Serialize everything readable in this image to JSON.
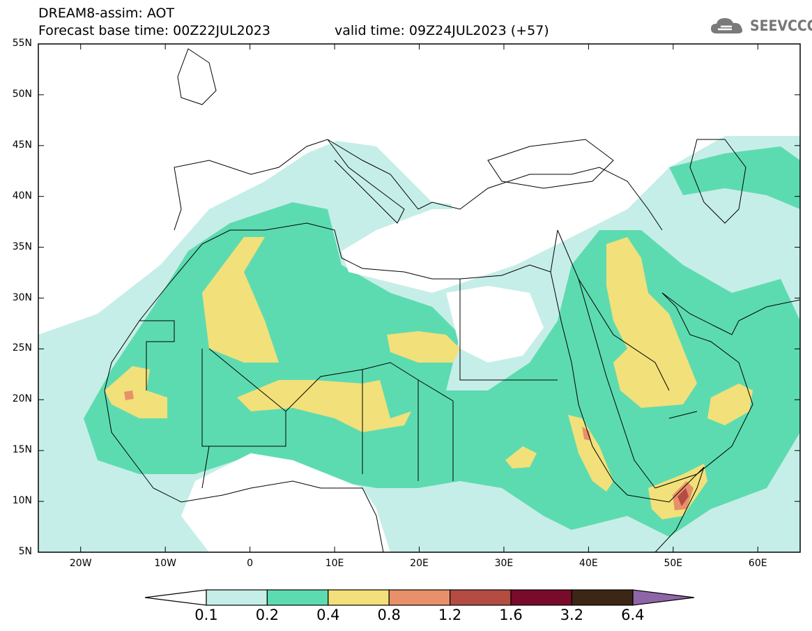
{
  "header": {
    "line1": "DREAM8-assim: AOT",
    "line2": "Forecast base time: 00Z22JUL2023",
    "line3": "valid time: 09Z24JUL2023 (+57)"
  },
  "logo": {
    "text": "SEEVCCC",
    "icon": "cloud-icon"
  },
  "map": {
    "lat_labels": [
      "55N",
      "50N",
      "45N",
      "40N",
      "35N",
      "30N",
      "25N",
      "20N",
      "15N",
      "10N",
      "5N"
    ],
    "lon_labels": [
      "20W",
      "10W",
      "0",
      "10E",
      "20E",
      "30E",
      "40E",
      "50E",
      "60E"
    ],
    "extent": {
      "lon": [
        -25,
        65
      ],
      "lat": [
        5,
        55
      ]
    }
  },
  "colorbar": {
    "labels": [
      "0.1",
      "0.2",
      "0.4",
      "0.8",
      "1.2",
      "1.6",
      "3.2",
      "6.4"
    ],
    "colors": [
      "#c6eee8",
      "#5ddbb0",
      "#f2e07a",
      "#e8906a",
      "#b44c42",
      "#780a2a",
      "#3c2616",
      "#8e66a8"
    ]
  }
}
